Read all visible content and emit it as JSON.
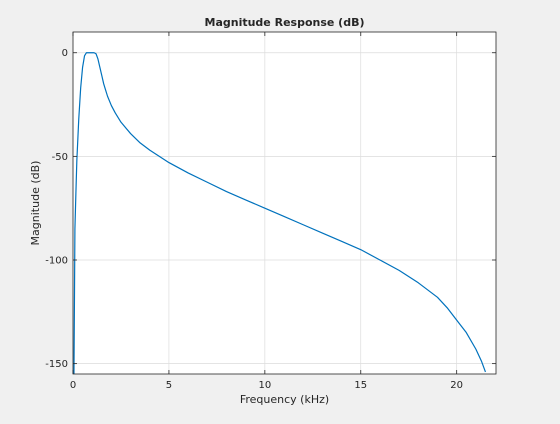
{
  "chart_data": {
    "type": "line",
    "title": "Magnitude Response (dB)",
    "xlabel": "Frequency (kHz)",
    "ylabel": "Magnitude (dB)",
    "xlim": [
      0,
      22.05
    ],
    "ylim": [
      -155,
      10
    ],
    "xticks": [
      0,
      5,
      10,
      15,
      20
    ],
    "yticks": [
      -150,
      -100,
      -50,
      0
    ],
    "xtick_labels": [
      "0",
      "5",
      "10",
      "15",
      "20"
    ],
    "ytick_labels": [
      "-150",
      "-100",
      "-50",
      "0"
    ],
    "grid": true,
    "line_color": "#0072bd",
    "series": [
      {
        "x": [
          0.05,
          0.1,
          0.15,
          0.2,
          0.3,
          0.4,
          0.5,
          0.6,
          0.7,
          0.8,
          0.9,
          1.0,
          1.1,
          1.2,
          1.3,
          1.4,
          1.5,
          1.6,
          1.7,
          1.8,
          2.0,
          2.2,
          2.5,
          3.0,
          3.5,
          4.0,
          4.5,
          5.0,
          6.0,
          7.0,
          8.0,
          9.0,
          10.0,
          11.0,
          12.0,
          13.0,
          14.0,
          15.0,
          16.0,
          17.0,
          18.0,
          19.0,
          19.5,
          20.0,
          20.5,
          21.0,
          21.3,
          21.5
        ],
        "y": [
          -155,
          -85,
          -68,
          -52,
          -32,
          -17,
          -7,
          -1.5,
          0,
          0,
          0,
          0,
          0,
          -0.5,
          -3,
          -7,
          -11,
          -15,
          -18,
          -21,
          -25.5,
          -29,
          -33.5,
          -39,
          -43.5,
          -47,
          -50,
          -53,
          -58,
          -62.5,
          -67,
          -71,
          -75,
          -79,
          -83,
          -87,
          -91,
          -95,
          -100,
          -105,
          -111,
          -118,
          -123,
          -129,
          -135,
          -143,
          -149,
          -154
        ]
      }
    ]
  }
}
